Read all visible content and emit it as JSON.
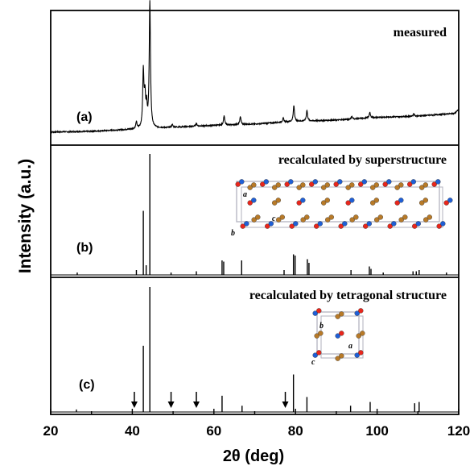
{
  "figure": {
    "xlabel": "2θ (deg)",
    "ylabel": "Intensity (a.u.)",
    "xlim": [
      20,
      120
    ],
    "xticks": [
      20,
      40,
      60,
      80,
      100,
      120
    ]
  },
  "chart_data": [
    {
      "type": "line",
      "panel": "(a)",
      "title": "measured",
      "xlim": [
        20,
        120
      ],
      "baseline": [
        [
          20,
          0.05
        ],
        [
          30,
          0.055
        ],
        [
          40,
          0.07
        ],
        [
          50,
          0.085
        ],
        [
          60,
          0.1
        ],
        [
          70,
          0.11
        ],
        [
          80,
          0.13
        ],
        [
          90,
          0.14
        ],
        [
          100,
          0.16
        ],
        [
          110,
          0.17
        ],
        [
          119,
          0.19
        ],
        [
          120,
          0.22
        ]
      ],
      "peaks": [
        {
          "x": 41.0,
          "y": 0.05
        },
        {
          "x": 42.7,
          "y": 0.42
        },
        {
          "x": 43.1,
          "y": 0.22
        },
        {
          "x": 43.5,
          "y": 0.15
        },
        {
          "x": 44.3,
          "y": 0.95
        },
        {
          "x": 49.8,
          "y": 0.02
        },
        {
          "x": 55.7,
          "y": 0.02
        },
        {
          "x": 62.5,
          "y": 0.07
        },
        {
          "x": 66.5,
          "y": 0.06
        },
        {
          "x": 77.0,
          "y": 0.03
        },
        {
          "x": 79.6,
          "y": 0.12
        },
        {
          "x": 82.8,
          "y": 0.08
        },
        {
          "x": 93.8,
          "y": 0.02
        },
        {
          "x": 98.2,
          "y": 0.04
        },
        {
          "x": 109.0,
          "y": 0.02
        }
      ]
    },
    {
      "type": "bar",
      "panel": "(b)",
      "title": "recalculated by superstructure",
      "xlim": [
        20,
        120
      ],
      "peaks": [
        {
          "x": 26.5,
          "y": 0.02
        },
        {
          "x": 41.0,
          "y": 0.04
        },
        {
          "x": 42.7,
          "y": 0.53
        },
        {
          "x": 43.4,
          "y": 0.08
        },
        {
          "x": 44.3,
          "y": 1.0
        },
        {
          "x": 49.5,
          "y": 0.02
        },
        {
          "x": 55.7,
          "y": 0.03
        },
        {
          "x": 62.0,
          "y": 0.12
        },
        {
          "x": 62.4,
          "y": 0.11
        },
        {
          "x": 66.8,
          "y": 0.12
        },
        {
          "x": 77.2,
          "y": 0.04
        },
        {
          "x": 79.5,
          "y": 0.17
        },
        {
          "x": 79.9,
          "y": 0.16
        },
        {
          "x": 82.9,
          "y": 0.13
        },
        {
          "x": 83.3,
          "y": 0.1
        },
        {
          "x": 93.6,
          "y": 0.04
        },
        {
          "x": 98.1,
          "y": 0.07
        },
        {
          "x": 98.5,
          "y": 0.05
        },
        {
          "x": 101.5,
          "y": 0.02
        },
        {
          "x": 108.8,
          "y": 0.03
        },
        {
          "x": 109.6,
          "y": 0.03
        },
        {
          "x": 110.3,
          "y": 0.04
        },
        {
          "x": 117.0,
          "y": 0.02
        }
      ],
      "inset_axes": [
        "a",
        "b",
        "c"
      ]
    },
    {
      "type": "bar",
      "panel": "(c)",
      "title": "recalculated by tetragonal structure",
      "xlim": [
        20,
        120
      ],
      "peaks": [
        {
          "x": 26.3,
          "y": 0.02
        },
        {
          "x": 42.7,
          "y": 0.53
        },
        {
          "x": 44.3,
          "y": 1.0
        },
        {
          "x": 62.0,
          "y": 0.13
        },
        {
          "x": 66.9,
          "y": 0.05
        },
        {
          "x": 79.5,
          "y": 0.3
        },
        {
          "x": 82.8,
          "y": 0.12
        },
        {
          "x": 93.5,
          "y": 0.05
        },
        {
          "x": 98.3,
          "y": 0.08
        },
        {
          "x": 109.2,
          "y": 0.07
        },
        {
          "x": 110.3,
          "y": 0.08
        }
      ],
      "arrows_x": [
        40.5,
        49.5,
        55.7,
        77.5
      ],
      "inset_axes": [
        "a",
        "b",
        "c"
      ]
    }
  ],
  "colors": {
    "axis": "#000000",
    "trace": "#000000",
    "atom_red": "#e8261c",
    "atom_blue": "#1f5fd6",
    "atom_brown": "#b87a28",
    "cell_line": "#b8b8c4"
  }
}
